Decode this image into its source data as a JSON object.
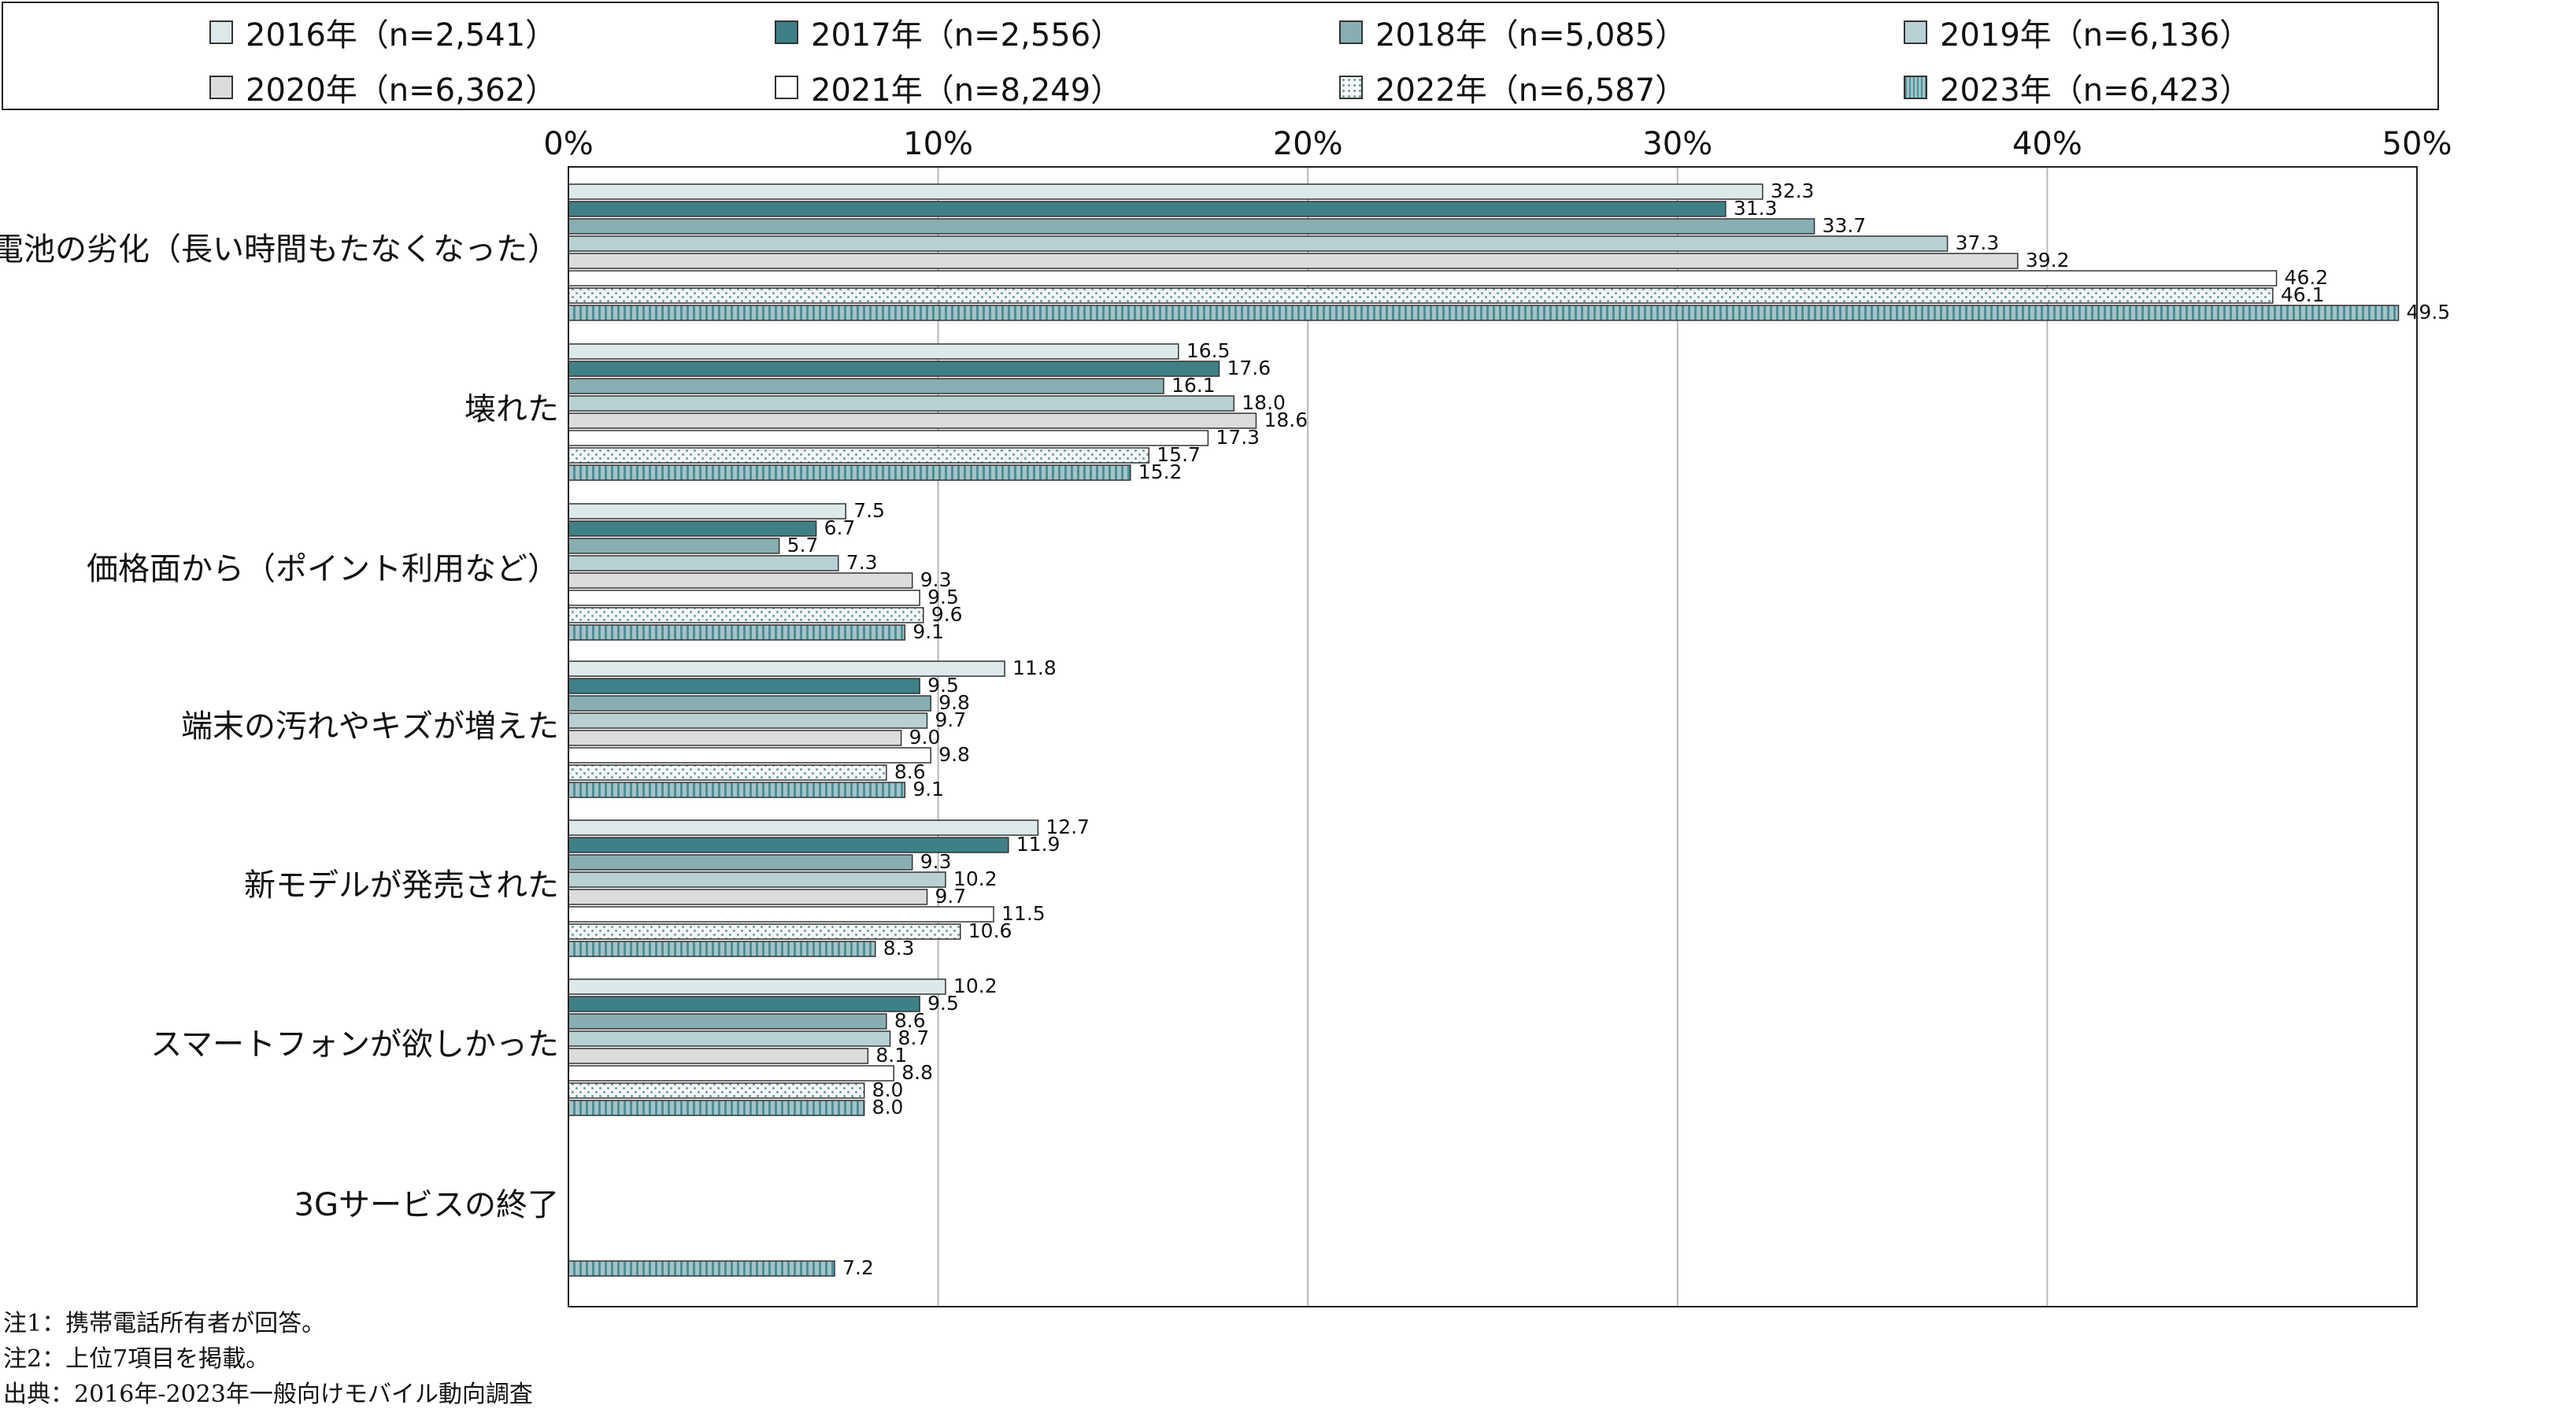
{
  "chart_data": {
    "type": "bar",
    "orientation": "horizontal",
    "xlim": [
      0,
      50
    ],
    "x_ticks": [
      "0%",
      "10%",
      "20%",
      "30%",
      "40%",
      "50%"
    ],
    "grid": true,
    "legend_position": "top",
    "categories": [
      "電池の劣化（長い時間もたなくなった）",
      "壊れた",
      "価格面から（ポイント利用など）",
      "端末の汚れやキズが増えた",
      "新モデルが発売された",
      "スマートフォンが欲しかった",
      "3Gサービスの終了"
    ],
    "series": [
      {
        "name": "2016年（n=2,541）",
        "color": "#dde8ea",
        "pattern": "solid",
        "values": [
          32.3,
          16.5,
          7.5,
          11.8,
          12.7,
          10.2,
          null
        ]
      },
      {
        "name": "2017年（n=2,556）",
        "color": "#3f8087",
        "pattern": "solid",
        "values": [
          31.3,
          17.6,
          6.7,
          9.5,
          11.9,
          9.5,
          null
        ]
      },
      {
        "name": "2018年（n=5,085）",
        "color": "#88aeb1",
        "pattern": "solid",
        "values": [
          33.7,
          16.1,
          5.7,
          9.8,
          9.3,
          8.6,
          null
        ]
      },
      {
        "name": "2019年（n=6,136）",
        "color": "#b9d0d3",
        "pattern": "solid",
        "values": [
          37.3,
          18.0,
          7.3,
          9.7,
          10.2,
          8.7,
          null
        ]
      },
      {
        "name": "2020年（n=6,362）",
        "color": "#dcdcdc",
        "pattern": "solid",
        "values": [
          39.2,
          18.6,
          9.3,
          9.0,
          9.7,
          8.1,
          null
        ]
      },
      {
        "name": "2021年（n=8,249）",
        "color": "#ffffff",
        "pattern": "solid",
        "values": [
          46.2,
          17.3,
          9.5,
          9.8,
          11.5,
          8.8,
          null
        ]
      },
      {
        "name": "2022年（n=6,587）",
        "color": "#e6eeee",
        "pattern": "dots",
        "values": [
          46.1,
          15.7,
          9.6,
          8.6,
          10.6,
          8.0,
          null
        ]
      },
      {
        "name": "2023年（n=6,423）",
        "color": "#a3c4c8",
        "pattern": "vstripes",
        "values": [
          49.5,
          15.2,
          9.1,
          9.1,
          8.3,
          8.0,
          7.2
        ]
      }
    ]
  },
  "notes": [
    "注1：携帯電話所有者が回答。",
    "注2：上位7項目を掲載。",
    "出典：2016年-2023年一般向けモバイル動向調査"
  ]
}
